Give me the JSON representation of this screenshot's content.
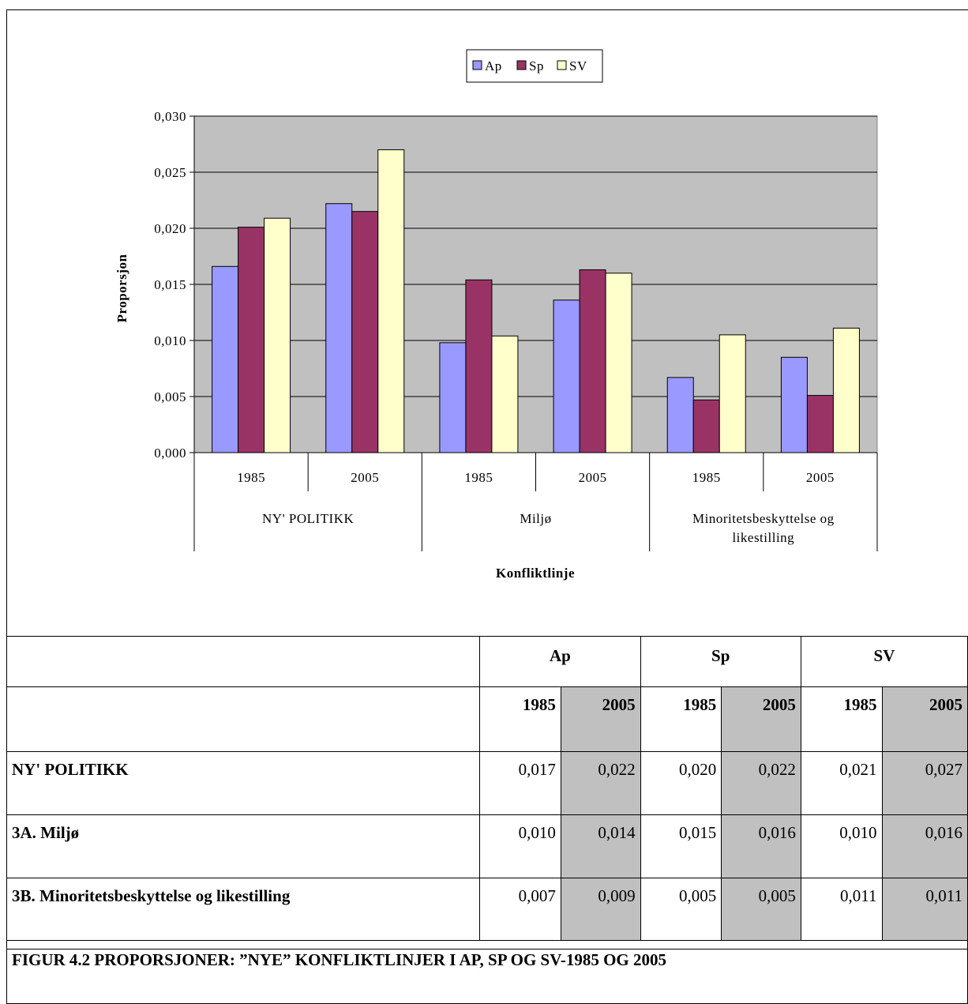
{
  "chart_data": {
    "type": "bar",
    "legend": {
      "placement": "top-center",
      "entries": [
        "Ap",
        "Sp",
        "SV"
      ]
    },
    "groups": [
      {
        "label": "NY' POLITIKK",
        "years": [
          "1985",
          "2005"
        ]
      },
      {
        "label": "Miljø",
        "years": [
          "1985",
          "2005"
        ]
      },
      {
        "label": "Minoritetsbeskyttelse og likestilling",
        "years": [
          "1985",
          "2005"
        ]
      }
    ],
    "series": [
      {
        "name": "Ap",
        "color": "#9999ff",
        "values": [
          0.0166,
          0.0222,
          0.0098,
          0.0136,
          0.0067,
          0.0085
        ]
      },
      {
        "name": "Sp",
        "color": "#993366",
        "values": [
          0.0201,
          0.0215,
          0.0154,
          0.0163,
          0.0047,
          0.0051
        ]
      },
      {
        "name": "SV",
        "color": "#ffffcc",
        "values": [
          0.0209,
          0.027,
          0.0104,
          0.016,
          0.0105,
          0.0111
        ]
      }
    ],
    "xlabel": "Konfliktlinje",
    "ylabel": "Proporsjon",
    "ylim": [
      0,
      0.03
    ],
    "yticks": [
      "0,000",
      "0,005",
      "0,010",
      "0,015",
      "0,020",
      "0,025",
      "0,030"
    ],
    "grid": true,
    "plot_background": "#c0c0c0"
  },
  "table": {
    "parties": [
      "Ap",
      "Sp",
      "SV"
    ],
    "years": [
      "1985",
      "2005",
      "1985",
      "2005",
      "1985",
      "2005"
    ],
    "rows": [
      {
        "label": "NY' POLITIKK",
        "values": [
          "0,017",
          "0,022",
          "0,020",
          "0,022",
          "0,021",
          "0,027"
        ]
      },
      {
        "label": "3A. Miljø",
        "values": [
          "0,010",
          "0,014",
          "0,015",
          "0,016",
          "0,010",
          "0,016"
        ]
      },
      {
        "label": "3B. Minoritetsbeskyttelse og likestilling",
        "values": [
          "0,007",
          "0,009",
          "0,005",
          "0,005",
          "0,011",
          "0,011"
        ]
      }
    ],
    "caption": "FIGUR 4.2 PROPORSJONER: ”NYE” KONFLIKTLINJER I AP, SP OG SV-1985 OG 2005"
  }
}
